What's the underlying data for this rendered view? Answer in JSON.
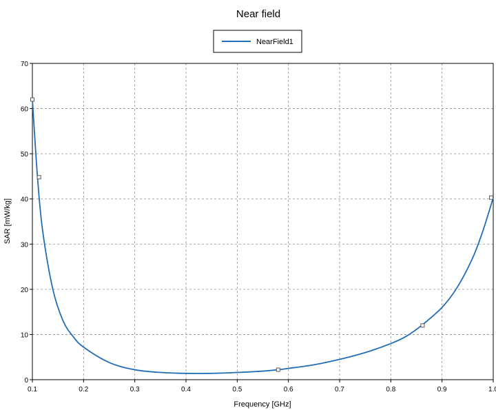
{
  "chart_data": {
    "type": "line",
    "title": "Near field",
    "xlabel": "Frequency [GHz]",
    "ylabel": "SAR [mW/kg]",
    "xlim": [
      0.1,
      1.0
    ],
    "ylim": [
      0,
      70
    ],
    "x_ticks": [
      "0.1",
      "0.2",
      "0.3",
      "0.4",
      "0.5",
      "0.6",
      "0.7",
      "0.8",
      "0.9",
      "1.0"
    ],
    "y_ticks": [
      "0",
      "10",
      "20",
      "30",
      "40",
      "50",
      "60",
      "70"
    ],
    "grid": true,
    "legend_position": "top-center",
    "series": [
      {
        "name": "NearField1",
        "color": "#1f6db5",
        "x": [
          0.1,
          0.11,
          0.12,
          0.14,
          0.16,
          0.18,
          0.2,
          0.25,
          0.3,
          0.35,
          0.4,
          0.45,
          0.5,
          0.55,
          0.58,
          0.6,
          0.65,
          0.7,
          0.75,
          0.8,
          0.83,
          0.86,
          0.9,
          0.93,
          0.96,
          0.98,
          1.0
        ],
        "y": [
          62,
          44.8,
          33,
          20,
          13,
          9.5,
          7.2,
          3.8,
          2.2,
          1.6,
          1.4,
          1.4,
          1.6,
          1.9,
          2.2,
          2.5,
          3.3,
          4.5,
          6.0,
          8.0,
          9.6,
          12.0,
          16.0,
          20.5,
          27.0,
          33.0,
          40.3
        ]
      }
    ],
    "markers": [
      {
        "x": 0.1,
        "y": 62
      },
      {
        "x": 0.113,
        "y": 44.8
      },
      {
        "x": 0.58,
        "y": 2.2
      },
      {
        "x": 0.862,
        "y": 12.0
      },
      {
        "x": 1.0,
        "y": 40.3
      }
    ]
  }
}
